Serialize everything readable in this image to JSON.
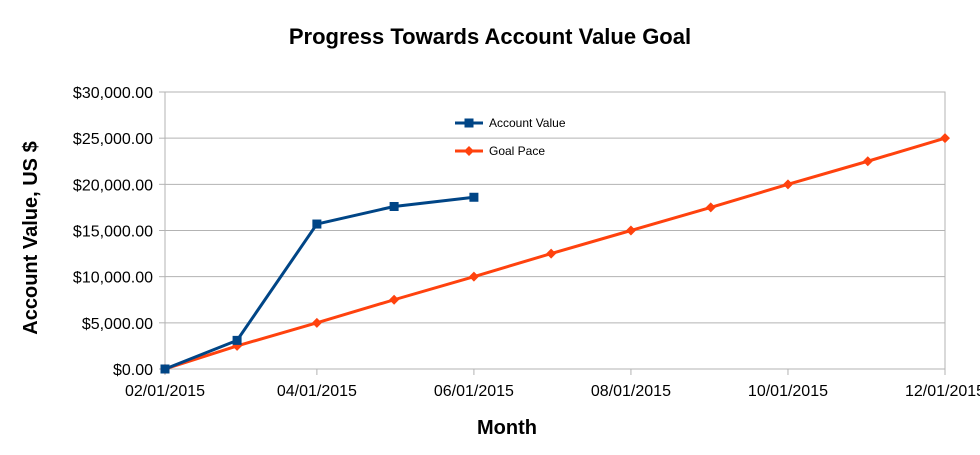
{
  "chart_data": {
    "type": "line",
    "title": "Progress Towards Account Value Goal",
    "xlabel": "Month",
    "ylabel": "Account Value, US $",
    "ylim": [
      0,
      30000
    ],
    "y_ticks": [
      0,
      5000,
      10000,
      15000,
      20000,
      25000,
      30000
    ],
    "y_tick_labels": [
      "$0.00",
      "$5,000.00",
      "$10,000.00",
      "$15,000.00",
      "$20,000.00",
      "$25,000.00",
      "$30,000.00"
    ],
    "xlim": [
      "2015-02-01",
      "2015-12-01"
    ],
    "x_ticks": [
      "2015-02-01",
      "2015-04-01",
      "2015-06-01",
      "2015-08-01",
      "2015-10-01",
      "2015-12-01"
    ],
    "x_tick_labels": [
      "02/01/2015",
      "04/01/2015",
      "06/01/2015",
      "08/01/2015",
      "10/01/2015",
      "12/01/2015"
    ],
    "grid": "horizontal",
    "legend_position": "top-center",
    "series": [
      {
        "name": "Account Value",
        "color": "#004586",
        "marker": "square",
        "points": [
          {
            "x": "2015-02-01",
            "y": 0
          },
          {
            "x": "2015-03-01",
            "y": 3100
          },
          {
            "x": "2015-04-01",
            "y": 15700
          },
          {
            "x": "2015-05-01",
            "y": 17600
          },
          {
            "x": "2015-06-01",
            "y": 18600
          }
        ]
      },
      {
        "name": "Goal Pace",
        "color": "#ff420e",
        "marker": "diamond",
        "points": [
          {
            "x": "2015-02-01",
            "y": 0
          },
          {
            "x": "2015-03-01",
            "y": 2500
          },
          {
            "x": "2015-04-01",
            "y": 5000
          },
          {
            "x": "2015-05-01",
            "y": 7500
          },
          {
            "x": "2015-06-01",
            "y": 10000
          },
          {
            "x": "2015-07-01",
            "y": 12500
          },
          {
            "x": "2015-08-01",
            "y": 15000
          },
          {
            "x": "2015-09-01",
            "y": 17500
          },
          {
            "x": "2015-10-01",
            "y": 20000
          },
          {
            "x": "2015-11-01",
            "y": 22500
          },
          {
            "x": "2015-12-01",
            "y": 25000
          }
        ]
      }
    ]
  }
}
